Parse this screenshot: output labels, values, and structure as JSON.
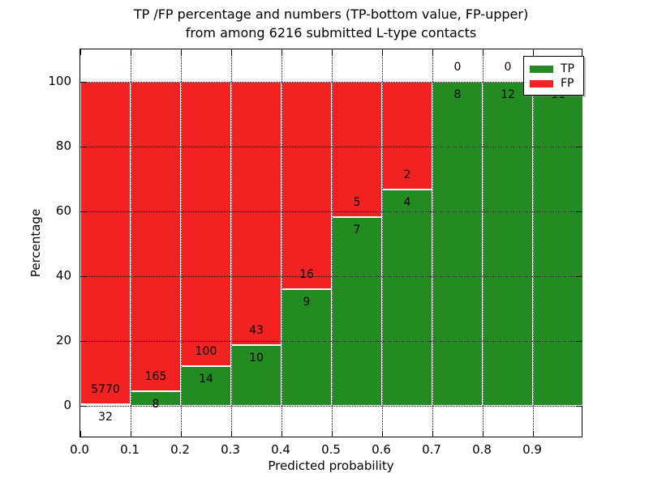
{
  "figure": {
    "title_line1": "TP /FP percentage and numbers (TP-bottom value, FP-upper)",
    "title_line2": "from among 6216 submitted L-type contacts",
    "xlabel": "Predicted probability",
    "ylabel": "Percentage"
  },
  "legend": {
    "position": "upper right",
    "items": [
      {
        "label": "TP",
        "color": "#228c22"
      },
      {
        "label": "FP",
        "color": "#f32222"
      }
    ]
  },
  "chart_data": {
    "type": "bar",
    "stacked": true,
    "normalized_to_percent": true,
    "title": "TP /FP percentage and numbers (TP-bottom value, FP-upper) from among 6216 submitted L-type contacts",
    "total_contacts": 6216,
    "xlabel": "Predicted probability",
    "ylabel": "Percentage",
    "xlim": [
      0.0,
      1.0
    ],
    "ylim": [
      -10,
      110
    ],
    "xticks": [
      "0.0",
      "0.1",
      "0.2",
      "0.3",
      "0.4",
      "0.5",
      "0.6",
      "0.7",
      "0.8",
      "0.9"
    ],
    "yticks": [
      0,
      20,
      40,
      60,
      80,
      100
    ],
    "grid": true,
    "legend_position": "upper right",
    "categories": [
      "0.0-0.1",
      "0.1-0.2",
      "0.2-0.3",
      "0.3-0.4",
      "0.4-0.5",
      "0.5-0.6",
      "0.6-0.7",
      "0.7-0.8",
      "0.8-0.9",
      "0.9-1.0"
    ],
    "series": [
      {
        "name": "TP",
        "color": "#228c22",
        "counts": [
          32,
          8,
          14,
          10,
          9,
          7,
          4,
          8,
          12,
          11
        ],
        "percentages": [
          0.55,
          4.62,
          12.28,
          18.87,
          36.0,
          58.33,
          66.67,
          100.0,
          100.0,
          100.0
        ]
      },
      {
        "name": "FP",
        "color": "#f32222",
        "counts": [
          5770,
          165,
          100,
          43,
          16,
          5,
          2,
          0,
          0,
          0
        ],
        "percentages": [
          99.45,
          95.38,
          87.72,
          81.13,
          64.0,
          41.67,
          33.33,
          0.0,
          0.0,
          0.0
        ]
      }
    ]
  }
}
